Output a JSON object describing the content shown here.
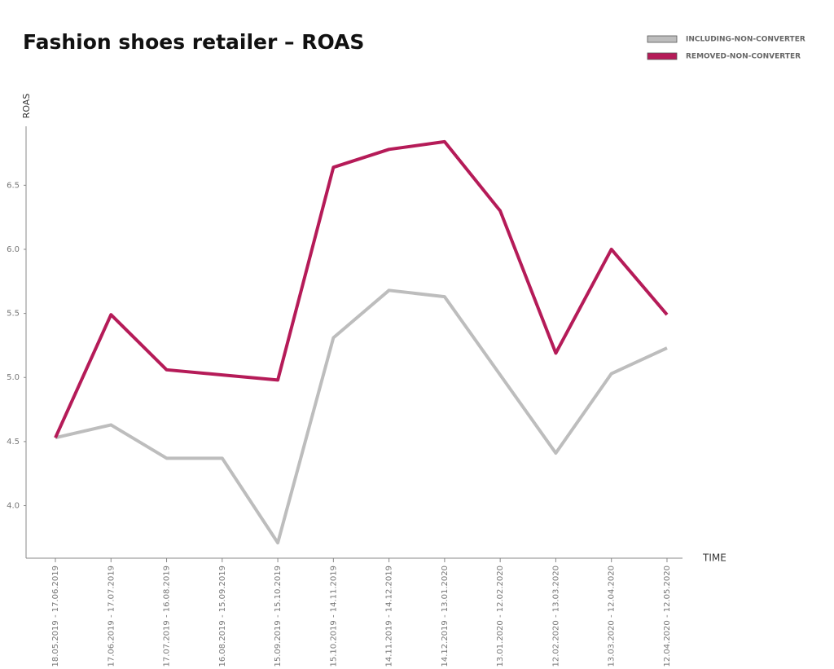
{
  "chart_data": {
    "type": "line",
    "title": "Fashion shoes retailer – ROAS",
    "y_label": "ROAS",
    "x_label": "TIME",
    "categories": [
      "18.05.2019 - 17.06.2019",
      "17.06.2019 - 17.07.2019",
      "17.07.2019 - 16.08.2019",
      "16.08.2019 - 15.09.2019",
      "15.09.2019 - 15.10.2019",
      "15.10.2019 - 14.11.2019",
      "14.11.2019 - 14.12.2019",
      "14.12.2019 - 13.01.2020",
      "13.01.2020 - 12.02.2020",
      "12.02.2020 - 13.03.2020",
      "13.03.2020 - 12.04.2020",
      "12.04.2020 - 12.05.2020"
    ],
    "series": [
      {
        "name": "INCLUDING-NON-CONVERTER",
        "color": "#bdbdbd",
        "values": [
          4.53,
          4.63,
          4.37,
          4.37,
          3.71,
          5.31,
          5.68,
          5.63,
          5.02,
          4.41,
          5.03,
          5.23
        ]
      },
      {
        "name": "REMOVED-NON-CONVERTER",
        "color": "#b51b58",
        "values": [
          4.53,
          5.49,
          5.06,
          5.02,
          4.98,
          6.64,
          6.78,
          6.84,
          6.3,
          5.19,
          6.0,
          5.49
        ]
      }
    ],
    "ylim": [
      3.59,
      6.96
    ],
    "yticks": [
      {
        "value": 4,
        "label": "4.0"
      },
      4.5,
      {
        "value": 5,
        "label": "5.0"
      },
      5.5,
      {
        "value": 6,
        "label": "6.0"
      },
      6.5
    ],
    "grid": false,
    "legend": "top-right"
  }
}
